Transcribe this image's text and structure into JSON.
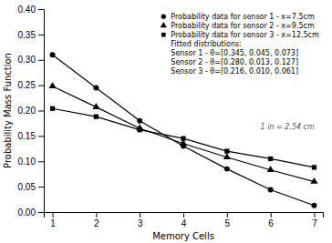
{
  "chart_data": {
    "type": "line",
    "x": [
      1,
      2,
      3,
      4,
      5,
      6,
      7
    ],
    "series": [
      {
        "name": "Probability data for sensor 1 - x=7.5cm",
        "color": "#000000",
        "marker": "circle",
        "values": [
          0.31,
          0.245,
          0.18,
          0.13,
          0.085,
          0.044,
          0.013
        ]
      },
      {
        "name": "Probability data for sensor 2 - x=9.5cm",
        "color": "#000000",
        "marker": "triangle",
        "values": [
          0.248,
          0.207,
          0.165,
          0.135,
          0.108,
          0.083,
          0.06
        ]
      },
      {
        "name": "Probability data for sensor 3 - x=12.5cm",
        "color": "#000000",
        "marker": "square",
        "values": [
          0.204,
          0.188,
          0.162,
          0.145,
          0.12,
          0.105,
          0.088
        ]
      }
    ],
    "x_label": "Memory Cells",
    "y_label": "Probability Mass Function",
    "xlim": [
      0.8,
      7.2
    ],
    "ylim": [
      0,
      0.4
    ],
    "xticks": [
      1,
      2,
      3,
      4,
      5,
      6,
      7
    ],
    "yticks": [
      {
        "value": 0,
        "label": "0.00"
      },
      {
        "value": 0.05,
        "label": "0.05"
      },
      {
        "value": 0.1,
        "label": "0.10"
      },
      {
        "value": 0.15,
        "label": "0.15"
      },
      {
        "value": 0.2,
        "label": "0.20"
      },
      {
        "value": 0.25,
        "label": "0.25"
      },
      {
        "value": 0.3,
        "label": "0.30"
      },
      {
        "value": 0.35,
        "label": "0.35"
      },
      {
        "value": 0.4,
        "label": "0.40"
      }
    ],
    "annotations": [
      "Fitted distributions:",
      "Sensor 1 - θ=[0.345, 0.045, 0.073]",
      "Sensor 2 - θ=[0.280, 0.013, 0.127]",
      "Sensor 3 - θ=[0.216, 0.010, 0.061]",
      "1 in = 2.54 cm"
    ],
    "legend": "upper-right",
    "grid": false
  }
}
